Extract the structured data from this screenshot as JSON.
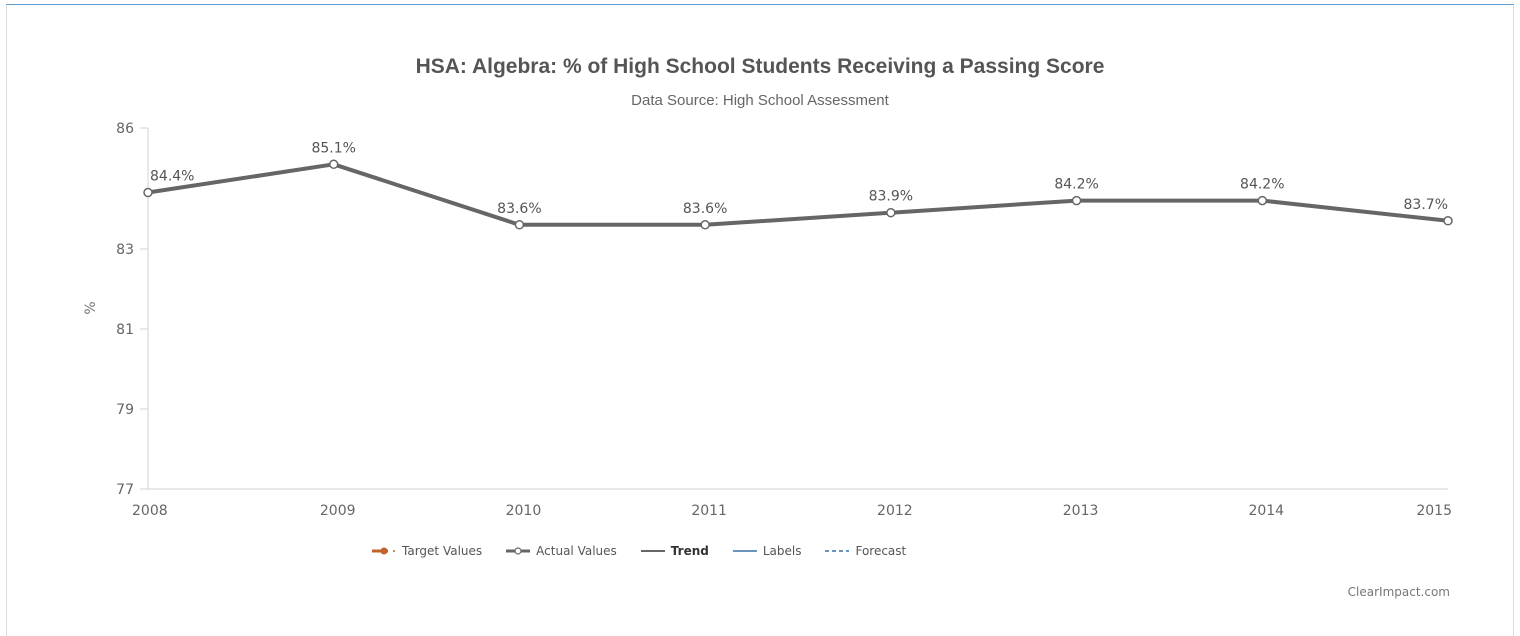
{
  "chart_data": {
    "type": "line",
    "title": "HSA: Algebra: % of High School Students Receiving a Passing Score",
    "subtitle": "Data Source: High School Assessment",
    "ylabel": "%",
    "xlabel": "",
    "categories": [
      "2008",
      "2009",
      "2010",
      "2011",
      "2012",
      "2013",
      "2014",
      "2015"
    ],
    "series": [
      {
        "name": "Actual Values",
        "values": [
          84.4,
          85.1,
          83.6,
          83.6,
          83.9,
          84.2,
          84.2,
          83.7
        ],
        "labels": [
          "84.4%",
          "85.1%",
          "83.6%",
          "83.6%",
          "83.9%",
          "84.2%",
          "84.2%",
          "83.7%"
        ],
        "color": "#666666"
      }
    ],
    "ylim": [
      77,
      86
    ],
    "yticks": [
      77,
      79,
      81,
      83,
      86
    ],
    "ytick_labels": [
      "77",
      "79",
      "81",
      "83",
      "86"
    ],
    "grid": false,
    "legend_position": "bottom-center"
  },
  "legend": {
    "items": [
      {
        "label": "Target Values",
        "color": "#c0632b",
        "style": "line-dot"
      },
      {
        "label": "Actual Values",
        "color": "#666666",
        "style": "line-hollow-dot"
      },
      {
        "label": "Trend",
        "color": "#333333",
        "style": "line"
      },
      {
        "label": "Labels",
        "color": "#3b6ea8",
        "style": "line"
      },
      {
        "label": "Forecast",
        "color": "#3b6ea8",
        "style": "dashed"
      }
    ]
  },
  "credit": "ClearImpact.com"
}
